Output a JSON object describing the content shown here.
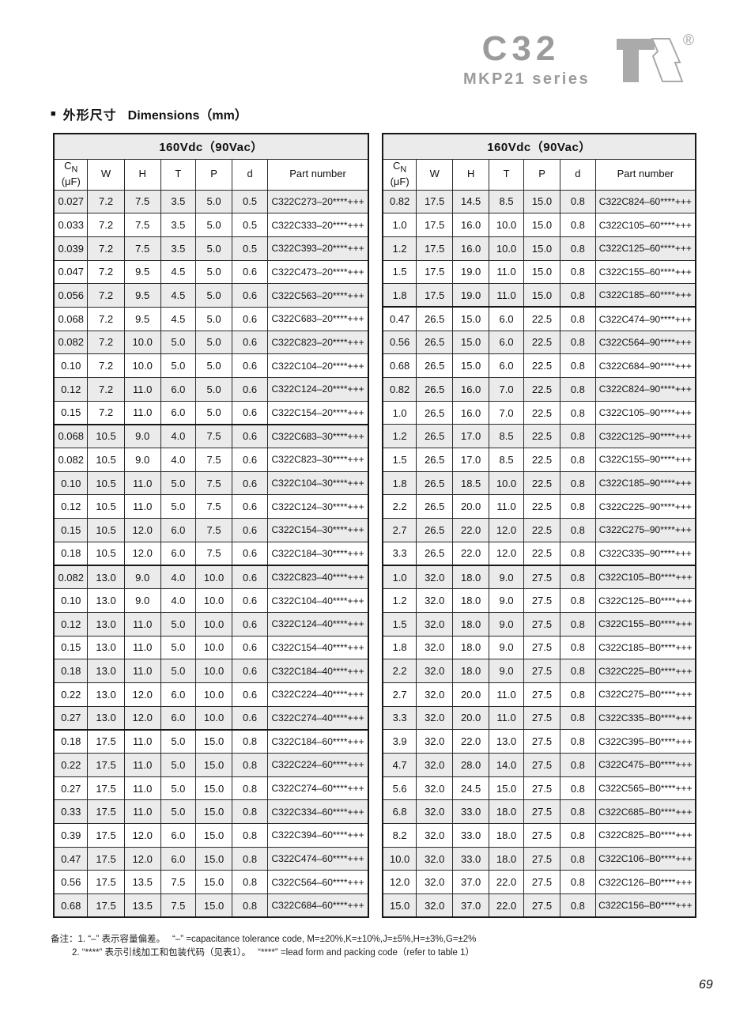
{
  "masthead": {
    "series_code": "C32",
    "series_name": "MKP21 series",
    "registered_mark": "®"
  },
  "section": {
    "bullet": "■",
    "title_zh": "外形尺寸",
    "title_en": "Dimensions（mm）"
  },
  "tables": [
    {
      "title": "160Vdc（90Vac）",
      "columns": [
        {
          "label": "C",
          "sub": "N",
          "line2": "(μF)"
        },
        {
          "label": "W"
        },
        {
          "label": "H"
        },
        {
          "label": "T"
        },
        {
          "label": "P"
        },
        {
          "label": "d"
        },
        {
          "label": "Part number"
        }
      ],
      "group_breaks": [
        10,
        16,
        23
      ],
      "rows": [
        [
          "0.027",
          "7.2",
          "7.5",
          "3.5",
          "5.0",
          "0.5",
          "C322C273–20****+++"
        ],
        [
          "0.033",
          "7.2",
          "7.5",
          "3.5",
          "5.0",
          "0.5",
          "C322C333–20****+++"
        ],
        [
          "0.039",
          "7.2",
          "7.5",
          "3.5",
          "5.0",
          "0.5",
          "C322C393–20****+++"
        ],
        [
          "0.047",
          "7.2",
          "9.5",
          "4.5",
          "5.0",
          "0.6",
          "C322C473–20****+++"
        ],
        [
          "0.056",
          "7.2",
          "9.5",
          "4.5",
          "5.0",
          "0.6",
          "C322C563–20****+++"
        ],
        [
          "0.068",
          "7.2",
          "9.5",
          "4.5",
          "5.0",
          "0.6",
          "C322C683–20****+++"
        ],
        [
          "0.082",
          "7.2",
          "10.0",
          "5.0",
          "5.0",
          "0.6",
          "C322C823–20****+++"
        ],
        [
          "0.10",
          "7.2",
          "10.0",
          "5.0",
          "5.0",
          "0.6",
          "C322C104–20****+++"
        ],
        [
          "0.12",
          "7.2",
          "11.0",
          "6.0",
          "5.0",
          "0.6",
          "C322C124–20****+++"
        ],
        [
          "0.15",
          "7.2",
          "11.0",
          "6.0",
          "5.0",
          "0.6",
          "C322C154–20****+++"
        ],
        [
          "0.068",
          "10.5",
          "9.0",
          "4.0",
          "7.5",
          "0.6",
          "C322C683–30****+++"
        ],
        [
          "0.082",
          "10.5",
          "9.0",
          "4.0",
          "7.5",
          "0.6",
          "C322C823–30****+++"
        ],
        [
          "0.10",
          "10.5",
          "11.0",
          "5.0",
          "7.5",
          "0.6",
          "C322C104–30****+++"
        ],
        [
          "0.12",
          "10.5",
          "11.0",
          "5.0",
          "7.5",
          "0.6",
          "C322C124–30****+++"
        ],
        [
          "0.15",
          "10.5",
          "12.0",
          "6.0",
          "7.5",
          "0.6",
          "C322C154–30****+++"
        ],
        [
          "0.18",
          "10.5",
          "12.0",
          "6.0",
          "7.5",
          "0.6",
          "C322C184–30****+++"
        ],
        [
          "0.082",
          "13.0",
          "9.0",
          "4.0",
          "10.0",
          "0.6",
          "C322C823–40****+++"
        ],
        [
          "0.10",
          "13.0",
          "9.0",
          "4.0",
          "10.0",
          "0.6",
          "C322C104–40****+++"
        ],
        [
          "0.12",
          "13.0",
          "11.0",
          "5.0",
          "10.0",
          "0.6",
          "C322C124–40****+++"
        ],
        [
          "0.15",
          "13.0",
          "11.0",
          "5.0",
          "10.0",
          "0.6",
          "C322C154–40****+++"
        ],
        [
          "0.18",
          "13.0",
          "11.0",
          "5.0",
          "10.0",
          "0.6",
          "C322C184–40****+++"
        ],
        [
          "0.22",
          "13.0",
          "12.0",
          "6.0",
          "10.0",
          "0.6",
          "C322C224–40****+++"
        ],
        [
          "0.27",
          "13.0",
          "12.0",
          "6.0",
          "10.0",
          "0.6",
          "C322C274–40****+++"
        ],
        [
          "0.18",
          "17.5",
          "11.0",
          "5.0",
          "15.0",
          "0.8",
          "C322C184–60****+++"
        ],
        [
          "0.22",
          "17.5",
          "11.0",
          "5.0",
          "15.0",
          "0.8",
          "C322C224–60****+++"
        ],
        [
          "0.27",
          "17.5",
          "11.0",
          "5.0",
          "15.0",
          "0.8",
          "C322C274–60****+++"
        ],
        [
          "0.33",
          "17.5",
          "11.0",
          "5.0",
          "15.0",
          "0.8",
          "C322C334–60****+++"
        ],
        [
          "0.39",
          "17.5",
          "12.0",
          "6.0",
          "15.0",
          "0.8",
          "C322C394–60****+++"
        ],
        [
          "0.47",
          "17.5",
          "12.0",
          "6.0",
          "15.0",
          "0.8",
          "C322C474–60****+++"
        ],
        [
          "0.56",
          "17.5",
          "13.5",
          "7.5",
          "15.0",
          "0.8",
          "C322C564–60****+++"
        ],
        [
          "0.68",
          "17.5",
          "13.5",
          "7.5",
          "15.0",
          "0.8",
          "C322C684–60****+++"
        ]
      ]
    },
    {
      "title": "160Vdc（90Vac）",
      "columns": [
        {
          "label": "C",
          "sub": "N",
          "line2": "(μF)"
        },
        {
          "label": "W"
        },
        {
          "label": "H"
        },
        {
          "label": "T"
        },
        {
          "label": "P"
        },
        {
          "label": "d"
        },
        {
          "label": "Part number"
        }
      ],
      "group_breaks": [
        5,
        16
      ],
      "rows": [
        [
          "0.82",
          "17.5",
          "14.5",
          "8.5",
          "15.0",
          "0.8",
          "C322C824–60****+++"
        ],
        [
          "1.0",
          "17.5",
          "16.0",
          "10.0",
          "15.0",
          "0.8",
          "C322C105–60****+++"
        ],
        [
          "1.2",
          "17.5",
          "16.0",
          "10.0",
          "15.0",
          "0.8",
          "C322C125–60****+++"
        ],
        [
          "1.5",
          "17.5",
          "19.0",
          "11.0",
          "15.0",
          "0.8",
          "C322C155–60****+++"
        ],
        [
          "1.8",
          "17.5",
          "19.0",
          "11.0",
          "15.0",
          "0.8",
          "C322C185–60****+++"
        ],
        [
          "0.47",
          "26.5",
          "15.0",
          "6.0",
          "22.5",
          "0.8",
          "C322C474–90****+++"
        ],
        [
          "0.56",
          "26.5",
          "15.0",
          "6.0",
          "22.5",
          "0.8",
          "C322C564–90****+++"
        ],
        [
          "0.68",
          "26.5",
          "15.0",
          "6.0",
          "22.5",
          "0.8",
          "C322C684–90****+++"
        ],
        [
          "0.82",
          "26.5",
          "16.0",
          "7.0",
          "22.5",
          "0.8",
          "C322C824–90****+++"
        ],
        [
          "1.0",
          "26.5",
          "16.0",
          "7.0",
          "22.5",
          "0.8",
          "C322C105–90****+++"
        ],
        [
          "1.2",
          "26.5",
          "17.0",
          "8.5",
          "22.5",
          "0.8",
          "C322C125–90****+++"
        ],
        [
          "1.5",
          "26.5",
          "17.0",
          "8.5",
          "22.5",
          "0.8",
          "C322C155–90****+++"
        ],
        [
          "1.8",
          "26.5",
          "18.5",
          "10.0",
          "22.5",
          "0.8",
          "C322C185–90****+++"
        ],
        [
          "2.2",
          "26.5",
          "20.0",
          "11.0",
          "22.5",
          "0.8",
          "C322C225–90****+++"
        ],
        [
          "2.7",
          "26.5",
          "22.0",
          "12.0",
          "22.5",
          "0.8",
          "C322C275–90****+++"
        ],
        [
          "3.3",
          "26.5",
          "22.0",
          "12.0",
          "22.5",
          "0.8",
          "C322C335–90****+++"
        ],
        [
          "1.0",
          "32.0",
          "18.0",
          "9.0",
          "27.5",
          "0.8",
          "C322C105–B0****+++"
        ],
        [
          "1.2",
          "32.0",
          "18.0",
          "9.0",
          "27.5",
          "0.8",
          "C322C125–B0****+++"
        ],
        [
          "1.5",
          "32.0",
          "18.0",
          "9.0",
          "27.5",
          "0.8",
          "C322C155–B0****+++"
        ],
        [
          "1.8",
          "32.0",
          "18.0",
          "9.0",
          "27.5",
          "0.8",
          "C322C185–B0****+++"
        ],
        [
          "2.2",
          "32.0",
          "18.0",
          "9.0",
          "27.5",
          "0.8",
          "C322C225–B0****+++"
        ],
        [
          "2.7",
          "32.0",
          "20.0",
          "11.0",
          "27.5",
          "0.8",
          "C322C275–B0****+++"
        ],
        [
          "3.3",
          "32.0",
          "20.0",
          "11.0",
          "27.5",
          "0.8",
          "C322C335–B0****+++"
        ],
        [
          "3.9",
          "32.0",
          "22.0",
          "13.0",
          "27.5",
          "0.8",
          "C322C395–B0****+++"
        ],
        [
          "4.7",
          "32.0",
          "28.0",
          "14.0",
          "27.5",
          "0.8",
          "C322C475–B0****+++"
        ],
        [
          "5.6",
          "32.0",
          "24.5",
          "15.0",
          "27.5",
          "0.8",
          "C322C565–B0****+++"
        ],
        [
          "6.8",
          "32.0",
          "33.0",
          "18.0",
          "27.5",
          "0.8",
          "C322C685–B0****+++"
        ],
        [
          "8.2",
          "32.0",
          "33.0",
          "18.0",
          "27.5",
          "0.8",
          "C322C825–B0****+++"
        ],
        [
          "10.0",
          "32.0",
          "33.0",
          "18.0",
          "27.5",
          "0.8",
          "C322C106–B0****+++"
        ],
        [
          "12.0",
          "32.0",
          "37.0",
          "22.0",
          "27.5",
          "0.8",
          "C322C126–B0****+++"
        ],
        [
          "15.0",
          "32.0",
          "37.0",
          "22.0",
          "27.5",
          "0.8",
          "C322C156–B0****+++"
        ]
      ]
    }
  ],
  "notes": {
    "line1": "备注：1. “–” 表示容量偏差。　 “–” =capacitance tolerance code, M=±20%,K=±10%,J=±5%,H=±3%,G=±2%",
    "line2": "2. “****” 表示引线加工和包装代码（见表1）。　 “****” =lead form and packing code（refer to table 1）"
  },
  "page": {
    "number": "69"
  },
  "colors": {
    "row_shade": "#ebebeb",
    "table_border": "#161616",
    "brand_gray": "#9b9b9b"
  }
}
